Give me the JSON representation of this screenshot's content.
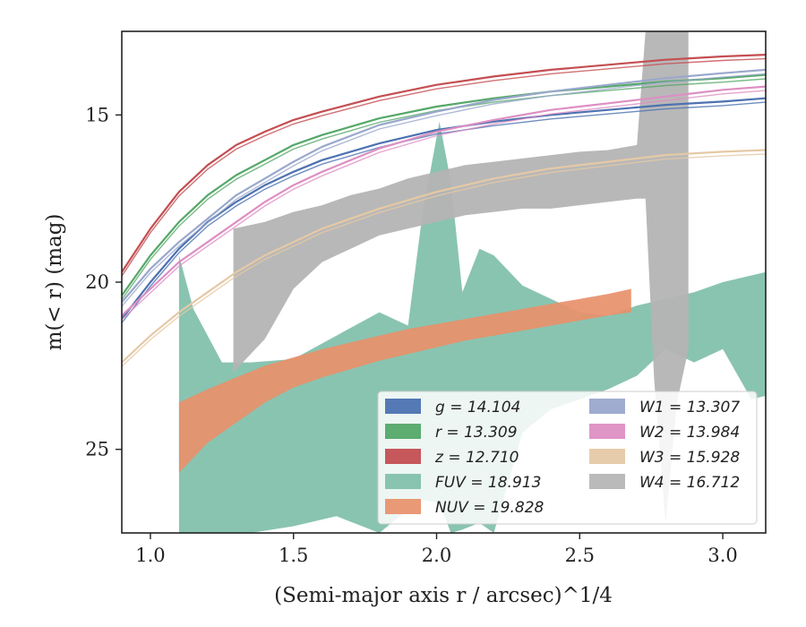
{
  "chart_data": {
    "type": "line",
    "xlabel": "(Semi-major axis r / arcsec)^1/4",
    "ylabel": "m(< r) (mag)",
    "xlim": [
      0.9,
      3.15
    ],
    "ylim": [
      27.5,
      12.5
    ],
    "y_inverted": true,
    "grid": false,
    "legend": "lower-right",
    "x_ticks": [
      1.0,
      1.5,
      2.0,
      2.5,
      3.0
    ],
    "x_tick_labels": [
      "1.0",
      "1.5",
      "2.0",
      "2.5",
      "3.0"
    ],
    "y_ticks": [
      15,
      20,
      25
    ],
    "y_tick_labels": [
      "15",
      "20",
      "25"
    ],
    "series": [
      {
        "name": "g = 14.104",
        "color": "#4c72b0",
        "kind": "line",
        "legend_col": 0,
        "x": [
          0.9,
          1.0,
          1.1,
          1.2,
          1.3,
          1.4,
          1.5,
          1.6,
          1.8,
          2.0,
          2.2,
          2.4,
          2.6,
          2.8,
          3.0,
          3.15
        ],
        "y": [
          21.1,
          20.0,
          19.0,
          18.2,
          17.6,
          17.1,
          16.7,
          16.35,
          15.85,
          15.45,
          15.2,
          15.0,
          14.85,
          14.7,
          14.6,
          14.5
        ]
      },
      {
        "name": "r = 13.309",
        "color": "#55a868",
        "kind": "line",
        "legend_col": 0,
        "x": [
          0.9,
          1.0,
          1.1,
          1.2,
          1.3,
          1.4,
          1.5,
          1.6,
          1.8,
          2.0,
          2.2,
          2.4,
          2.6,
          2.8,
          3.0,
          3.15
        ],
        "y": [
          20.4,
          19.2,
          18.2,
          17.4,
          16.8,
          16.35,
          15.9,
          15.6,
          15.1,
          14.75,
          14.5,
          14.3,
          14.15,
          14.0,
          13.9,
          13.8
        ]
      },
      {
        "name": "z = 12.710",
        "color": "#c44e52",
        "kind": "line",
        "legend_col": 0,
        "x": [
          0.9,
          1.0,
          1.1,
          1.2,
          1.3,
          1.4,
          1.5,
          1.6,
          1.8,
          2.0,
          2.2,
          2.4,
          2.6,
          2.8,
          3.0,
          3.15
        ],
        "y": [
          19.7,
          18.4,
          17.3,
          16.5,
          15.9,
          15.5,
          15.15,
          14.9,
          14.45,
          14.1,
          13.85,
          13.65,
          13.5,
          13.35,
          13.25,
          13.2
        ]
      },
      {
        "name": "FUV = 18.913",
        "color": "#7fbfaa",
        "kind": "band",
        "legend_col": 0,
        "x": [
          1.1,
          1.15,
          1.25,
          1.35,
          1.5,
          1.65,
          1.8,
          1.9,
          1.95,
          2.01,
          2.05,
          2.09,
          2.15,
          2.2,
          2.3,
          2.4,
          2.5,
          2.6,
          2.7,
          2.8,
          2.9,
          3.0,
          3.1,
          3.15
        ],
        "y_upper": [
          19.2,
          20.8,
          22.4,
          22.4,
          22.3,
          21.6,
          20.9,
          21.3,
          18.0,
          15.2,
          17.0,
          20.3,
          19.0,
          19.2,
          20.1,
          20.5,
          20.9,
          21.0,
          20.7,
          20.5,
          20.3,
          20.0,
          19.8,
          19.7
        ],
        "y_lower": [
          27.5,
          27.5,
          27.5,
          27.5,
          27.3,
          27.0,
          27.5,
          26.8,
          26.5,
          26.6,
          27.5,
          27.4,
          27.2,
          27.5,
          24.5,
          23.8,
          23.5,
          23.2,
          22.8,
          22.0,
          22.4,
          22.0,
          23.5,
          23.4
        ]
      },
      {
        "name": "NUV = 19.828",
        "color": "#e8906a",
        "kind": "band",
        "legend_col": 0,
        "x": [
          1.1,
          1.2,
          1.3,
          1.4,
          1.5,
          1.6,
          1.7,
          1.8,
          1.9,
          2.0,
          2.1,
          2.2,
          2.3,
          2.4,
          2.5,
          2.6,
          2.68
        ],
        "y_upper": [
          23.6,
          23.2,
          22.85,
          22.5,
          22.25,
          22.0,
          21.8,
          21.6,
          21.4,
          21.25,
          21.1,
          20.95,
          20.8,
          20.65,
          20.5,
          20.35,
          20.2
        ],
        "y_lower": [
          25.7,
          24.8,
          24.2,
          23.6,
          23.15,
          22.85,
          22.6,
          22.35,
          22.15,
          21.95,
          21.75,
          21.6,
          21.45,
          21.3,
          21.15,
          21.0,
          20.9
        ]
      },
      {
        "name": "W1 = 13.307",
        "color": "#9aa8cc",
        "kind": "line",
        "legend_col": 1,
        "x": [
          0.9,
          1.0,
          1.1,
          1.2,
          1.3,
          1.4,
          1.5,
          1.6,
          1.8,
          2.0,
          2.2,
          2.4,
          2.6,
          2.8,
          3.0,
          3.15
        ],
        "y": [
          20.6,
          19.6,
          18.8,
          18.1,
          17.4,
          16.9,
          16.4,
          15.95,
          15.3,
          14.9,
          14.55,
          14.3,
          14.1,
          13.9,
          13.75,
          13.65
        ]
      },
      {
        "name": "W2 = 13.984",
        "color": "#dd8fc3",
        "kind": "line",
        "legend_col": 1,
        "x": [
          0.9,
          1.0,
          1.1,
          1.2,
          1.3,
          1.4,
          1.5,
          1.6,
          1.8,
          2.0,
          2.2,
          2.4,
          2.6,
          2.8,
          3.0,
          3.15
        ],
        "y": [
          21.0,
          20.2,
          19.4,
          18.8,
          18.2,
          17.6,
          17.1,
          16.7,
          16.0,
          15.5,
          15.15,
          14.85,
          14.65,
          14.45,
          14.25,
          14.15
        ]
      },
      {
        "name": "W3 = 15.928",
        "color": "#e5c9a5",
        "kind": "line",
        "legend_col": 1,
        "x": [
          0.9,
          1.0,
          1.1,
          1.2,
          1.3,
          1.4,
          1.5,
          1.6,
          1.8,
          2.0,
          2.2,
          2.4,
          2.6,
          2.8,
          3.0,
          3.15
        ],
        "y": [
          22.4,
          21.6,
          20.9,
          20.3,
          19.7,
          19.2,
          18.8,
          18.4,
          17.8,
          17.3,
          16.9,
          16.6,
          16.4,
          16.2,
          16.1,
          16.05
        ]
      },
      {
        "name": "W4 = 16.712",
        "color": "#b4b4b4",
        "kind": "band",
        "legend_col": 1,
        "x": [
          1.29,
          1.4,
          1.5,
          1.6,
          1.7,
          1.8,
          1.9,
          2.0,
          2.1,
          2.2,
          2.3,
          2.4,
          2.5,
          2.6,
          2.7,
          2.73,
          2.76,
          2.8,
          2.84,
          2.88
        ],
        "y_upper": [
          18.4,
          18.2,
          17.9,
          17.7,
          17.4,
          17.2,
          16.9,
          16.7,
          16.5,
          16.4,
          16.3,
          16.2,
          16.1,
          16.05,
          15.9,
          12.5,
          12.5,
          12.5,
          12.5,
          12.5
        ],
        "y_lower": [
          22.7,
          21.7,
          20.2,
          19.4,
          19.0,
          18.6,
          18.4,
          18.2,
          18.0,
          17.9,
          17.8,
          17.8,
          17.7,
          17.6,
          17.5,
          17.5,
          22.9,
          27.2,
          23.6,
          22.0
        ]
      }
    ]
  }
}
